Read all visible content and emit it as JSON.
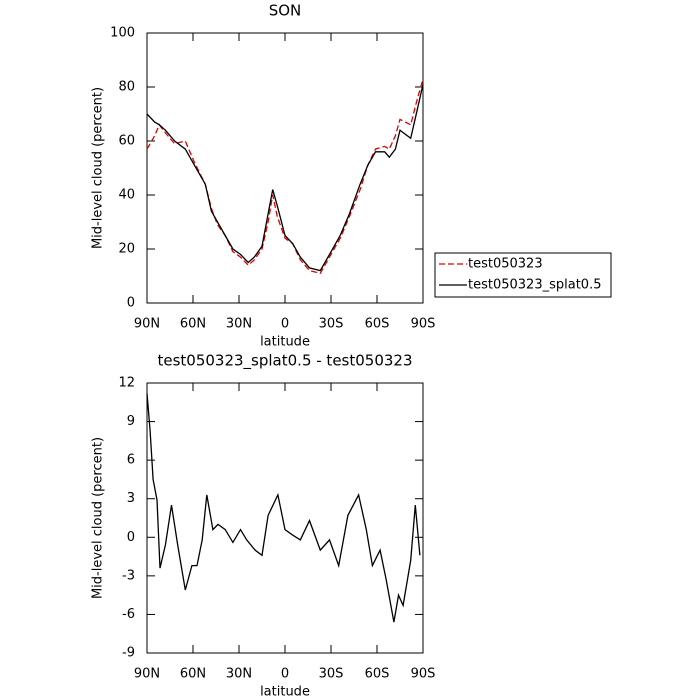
{
  "chart_data": [
    {
      "type": "line",
      "title": "SON",
      "xlabel": "latitude",
      "ylabel": "Mid-level cloud (percent)",
      "xlim": [
        90,
        -90
      ],
      "ylim": [
        0,
        100
      ],
      "xticks": [
        {
          "value": 90,
          "label": "90N"
        },
        {
          "value": 60,
          "label": "60N"
        },
        {
          "value": 30,
          "label": "30N"
        },
        0,
        {
          "value": -30,
          "label": "30S"
        },
        {
          "value": -60,
          "label": "60S"
        },
        {
          "value": -90,
          "label": "90S"
        }
      ],
      "yticks": [
        0,
        20,
        40,
        60,
        80,
        100
      ],
      "x": [
        90,
        85,
        82,
        78,
        72,
        65,
        59,
        52,
        48,
        44,
        39,
        34,
        29,
        24,
        20,
        15,
        11,
        8,
        5,
        0,
        -5,
        -10,
        -16,
        -23,
        -29,
        -36,
        -42,
        -49,
        -54,
        -59,
        -65,
        -68,
        -72,
        -75,
        -82,
        -86,
        -90
      ],
      "legend": "right",
      "series": [
        {
          "name": "test050323",
          "color": "#e00000",
          "dash": true,
          "values": [
            57,
            62,
            66,
            63,
            59,
            60,
            52,
            44,
            35,
            29,
            25,
            19,
            17,
            14,
            16,
            20,
            30,
            40,
            32,
            24,
            22,
            16,
            12,
            11,
            17,
            24,
            32,
            42,
            51,
            57,
            58,
            57,
            62,
            68,
            66,
            75,
            83
          ]
        },
        {
          "name": "test050323_splat0.5",
          "color": "#000000",
          "dash": false,
          "values": [
            70,
            67,
            66,
            64,
            60,
            57,
            51,
            44,
            34,
            30,
            25,
            20,
            18,
            15,
            17,
            21,
            33,
            42,
            36,
            25,
            22,
            17,
            13,
            12,
            18,
            25,
            33,
            44,
            51,
            56,
            56,
            54,
            57,
            64,
            61,
            71,
            81
          ]
        }
      ]
    },
    {
      "type": "line",
      "title": "test050323_splat0.5 - test050323",
      "xlabel": "latitude",
      "ylabel": "Mid-level cloud (percent)",
      "xlim": [
        90,
        -90
      ],
      "ylim": [
        -9,
        12
      ],
      "xticks": [
        {
          "value": 90,
          "label": "90N"
        },
        {
          "value": 60,
          "label": "60N"
        },
        {
          "value": 30,
          "label": "30N"
        },
        0,
        {
          "value": -30,
          "label": "30S"
        },
        {
          "value": -60,
          "label": "60S"
        },
        {
          "value": -90,
          "label": "90S"
        }
      ],
      "yticks": [
        -9,
        -6,
        -3,
        0,
        3,
        6,
        9,
        12
      ],
      "x": [
        90,
        88,
        86,
        83.5,
        81.5,
        78,
        74,
        70,
        65,
        60.7,
        57.4,
        54,
        51,
        47,
        43.7,
        39,
        34,
        29,
        25,
        19.5,
        15,
        11,
        4.6,
        0,
        -4.6,
        -10,
        -16,
        -23,
        -29,
        -35,
        -41,
        -48,
        -53,
        -57,
        -62,
        -66,
        -71,
        -74,
        -77,
        -82,
        -85,
        -88
      ],
      "series": [
        {
          "color": "#000000",
          "dash": false,
          "values": [
            11.2,
            8.3,
            4.5,
            2.9,
            -2.4,
            -0.6,
            2.5,
            -0.6,
            -4.1,
            -2.2,
            -2.2,
            -0.2,
            3.3,
            0.6,
            1,
            0.6,
            -0.4,
            0.6,
            -0.2,
            -1,
            -1.4,
            1.7,
            3.3,
            0.6,
            0.2,
            -0.2,
            1.3,
            -1,
            -0.2,
            -2.2,
            1.7,
            3.3,
            0.6,
            -2.2,
            -1,
            -3.3,
            -6.6,
            -4.5,
            -5.3,
            -1.8,
            2.5,
            -1.4
          ]
        }
      ]
    }
  ]
}
